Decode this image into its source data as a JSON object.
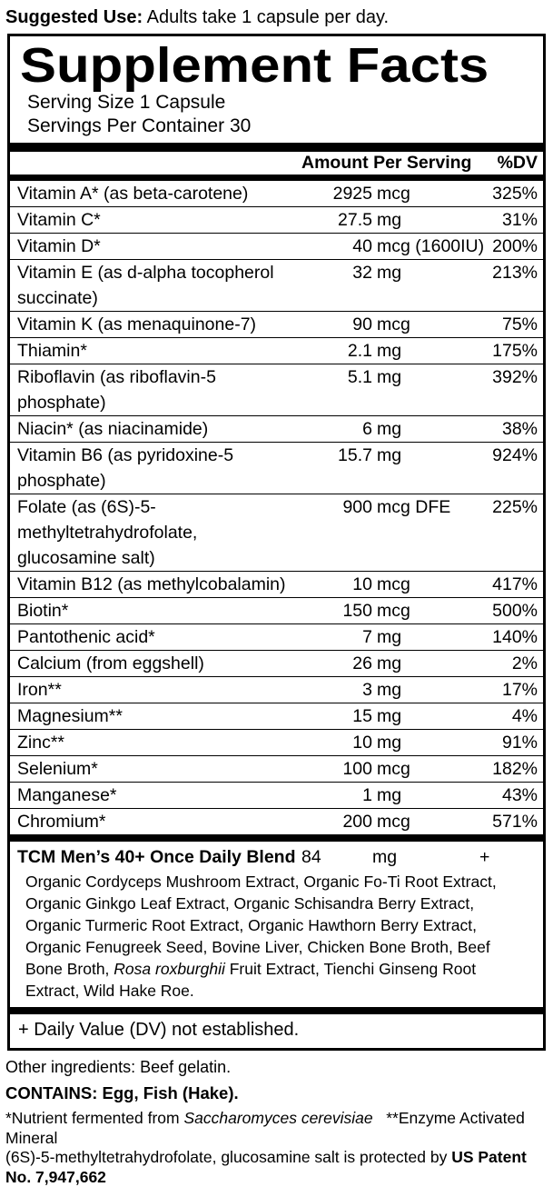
{
  "suggested_use": {
    "label": "Suggested Use:",
    "text": " Adults take 1 capsule per day."
  },
  "panel": {
    "title": "Supplement Facts",
    "serving_size": "Serving Size 1 Capsule",
    "servings_per_container": "Servings Per Container 30",
    "header": {
      "amount_label": "Amount Per Serving",
      "dv_label": "%DV"
    },
    "rows": [
      {
        "name": "Vitamin A* (as beta-carotene)",
        "num": "2925",
        "unit": "mcg",
        "dv": "325%"
      },
      {
        "name": "Vitamin C*",
        "num": "27.5",
        "unit": "mg",
        "dv": "31%"
      },
      {
        "name": "Vitamin D*",
        "num": "40",
        "unit": "mcg (1600IU)",
        "dv": "200%"
      },
      {
        "name": "Vitamin E (as d-alpha tocopherol succinate)",
        "num": "32",
        "unit": "mg",
        "dv": "213%"
      },
      {
        "name": "Vitamin K (as menaquinone-7)",
        "num": "90",
        "unit": "mcg",
        "dv": "75%"
      },
      {
        "name": "Thiamin*",
        "num": "2.1",
        "unit": "mg",
        "dv": "175%"
      },
      {
        "name": "Riboflavin (as riboflavin-5 phosphate)",
        "num": "5.1",
        "unit": "mg",
        "dv": "392%"
      },
      {
        "name": "Niacin* (as niacinamide)",
        "num": "6",
        "unit": "mg",
        "dv": "38%"
      },
      {
        "name": "Vitamin B6 (as pyridoxine-5 phosphate)",
        "num": "15.7",
        "unit": "mg",
        "dv": "924%"
      },
      {
        "name": "Folate (as (6S)-5-methyltetrahydrofolate, glucosamine salt)",
        "num": "900",
        "unit": "mcg DFE",
        "dv": "225%"
      },
      {
        "name": "Vitamin B12 (as methylcobalamin)",
        "num": "10",
        "unit": "mcg",
        "dv": "417%"
      },
      {
        "name": "Biotin*",
        "num": "150",
        "unit": "mcg",
        "dv": "500%"
      },
      {
        "name": "Pantothenic acid*",
        "num": "7",
        "unit": "mg",
        "dv": "140%"
      },
      {
        "name": "Calcium (from eggshell)",
        "num": "26",
        "unit": "mg",
        "dv": "2%"
      },
      {
        "name": "Iron**",
        "num": "3",
        "unit": "mg",
        "dv": "17%"
      },
      {
        "name": "Magnesium**",
        "num": "15",
        "unit": "mg",
        "dv": "4%"
      },
      {
        "name": "Zinc**",
        "num": "10",
        "unit": "mg",
        "dv": "91%"
      },
      {
        "name": "Selenium*",
        "num": "100",
        "unit": "mcg",
        "dv": "182%"
      },
      {
        "name": "Manganese*",
        "num": "1",
        "unit": "mg",
        "dv": "43%"
      },
      {
        "name": "Chromium*",
        "num": "200",
        "unit": "mcg",
        "dv": "571%"
      }
    ],
    "blend": {
      "name": "TCM Men’s 40+ Once Daily Blend",
      "num": "84",
      "unit": "mg",
      "dv": "+",
      "ingredients_pre": "Organic Cordyceps Mushroom Extract, Organic Fo-Ti Root Extract, Organic Ginkgo Leaf Extract, Organic Schisandra Berry Extract, Organic Turmeric Root Extract, Organic Hawthorn Berry Extract, Organic Fenugreek Seed, Bovine Liver, Chicken Bone Broth, Beef Bone Broth, ",
      "ingredients_italic": "Rosa roxburghii",
      "ingredients_post": " Fruit Extract, Tienchi Ginseng Root Extract, Wild Hake Roe."
    },
    "dv_note": "+ Daily Value (DV) not established."
  },
  "footer": {
    "other_ingredients": "Other ingredients: Beef gelatin.",
    "contains": "CONTAINS: Egg, Fish (Hake).",
    "note1_pre": "*Nutrient fermented from ",
    "note1_italic": "Saccharomyces cerevisiae",
    "note1_post": "   **Enzyme Activated Mineral",
    "note2_pre": "(6S)-5-methyltetrahydrofolate, glucosamine salt is protected by ",
    "note2_bold": "US Patent No. 7,947,662"
  }
}
